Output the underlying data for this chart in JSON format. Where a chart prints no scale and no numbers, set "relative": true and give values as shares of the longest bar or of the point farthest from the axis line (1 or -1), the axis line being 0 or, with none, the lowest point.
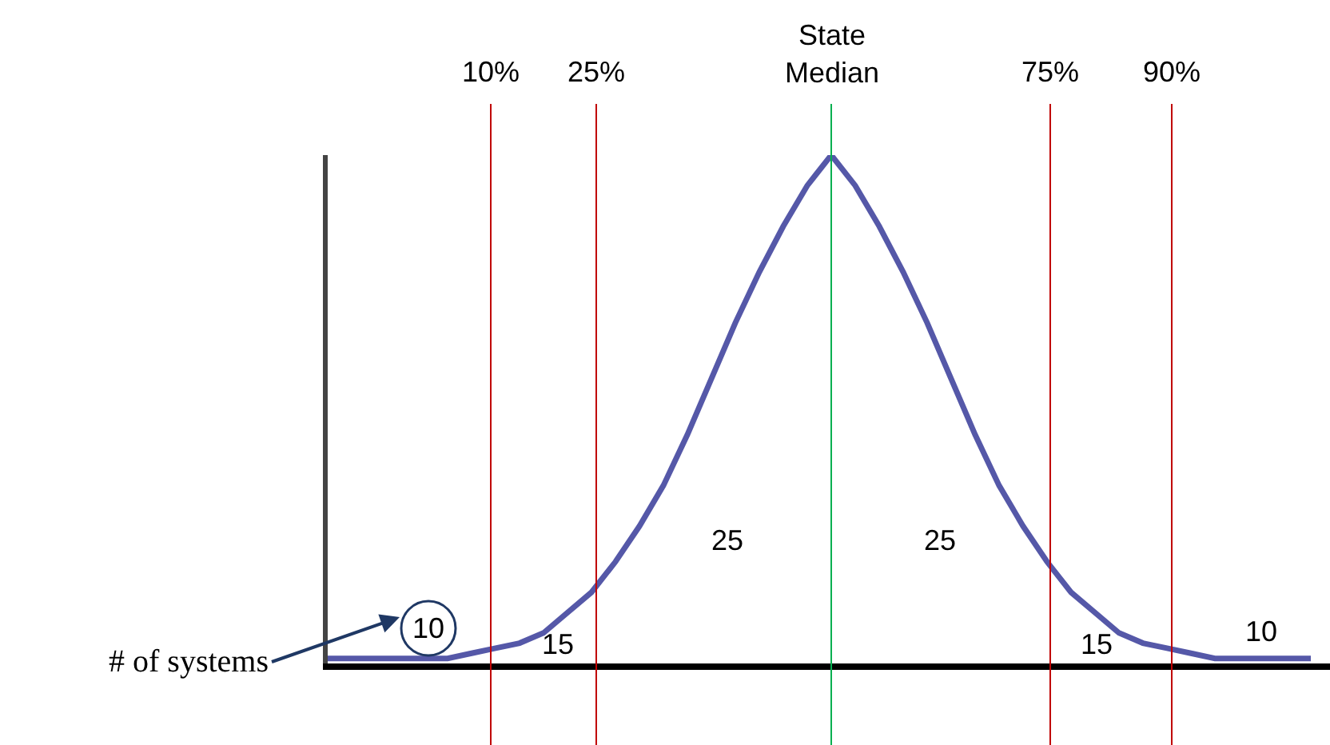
{
  "chart_data": {
    "type": "line",
    "relative": true,
    "categories": [
      null,
      null,
      null,
      null,
      null,
      null,
      null,
      null,
      null,
      null,
      null,
      null,
      null,
      null,
      null,
      null,
      null,
      null,
      null,
      null,
      null,
      null,
      null,
      null,
      null,
      null,
      null,
      null,
      null,
      null,
      null,
      null,
      null,
      null,
      null,
      null,
      null,
      null,
      null,
      null,
      null,
      null
    ],
    "series": [
      {
        "color": "#5558a8",
        "values": [
          0.01,
          0.01,
          0.01,
          0.01,
          0.01,
          0.01,
          0.02,
          0.03,
          0.04,
          0.06,
          0.1,
          0.14,
          0.2,
          0.27,
          0.35,
          0.45,
          0.56,
          0.67,
          0.77,
          0.86,
          0.94,
          1,
          0.94,
          0.86,
          0.77,
          0.67,
          0.56,
          0.45,
          0.35,
          0.27,
          0.2,
          0.14,
          0.1,
          0.06,
          0.04,
          0.03,
          0.02,
          0.01,
          0.01,
          0.01,
          0.01,
          0.01
        ]
      }
    ],
    "annotations": [
      "10%",
      "25%",
      "State Median",
      "75%",
      "90%",
      "# of systems",
      "10",
      "15",
      "25",
      "25",
      "15",
      "10"
    ],
    "marker": "none",
    "line_style": "solid",
    "tick_labels": false
  }
}
